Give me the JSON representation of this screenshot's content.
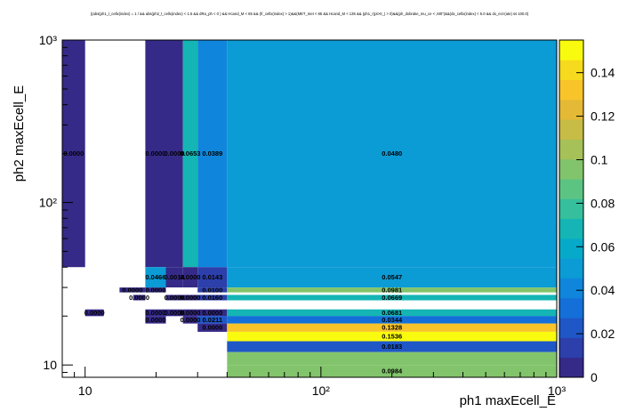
{
  "chart_data": {
    "type": "heatmap",
    "title": "((abs(ph1_l_cellx(index) = 1 / && abs(ph2_l_cellx(index) < 1.5 && dRa_ph < 0 ) && Hcand_M < 65 && (fr_cellx(index) > 1)&&(MET_met < 85 && Hcand_M < 135 && (ph1_r(pt>0_) > 0)&&(ph_dxbrake_mu_ce < ,M0\")&&(dx_cellx(index) < 5.0 && dx_ect-(ate) ss 100.0)",
    "xlabel": "ph1 maxEcell_E",
    "ylabel": "ph2 maxEcell_E",
    "x_scale": "log",
    "y_scale": "log",
    "xlim": [
      8.0,
      1000
    ],
    "ylim": [
      8.4,
      1000
    ],
    "x_ticks": [
      {
        "v": 10,
        "label": "10"
      },
      {
        "v": 100,
        "label": "10²"
      },
      {
        "v": 1000,
        "label": "10³"
      }
    ],
    "y_ticks": [
      {
        "v": 10,
        "label": "10"
      },
      {
        "v": 100,
        "label": "10²"
      },
      {
        "v": 1000,
        "label": "10³"
      }
    ],
    "z_range": [
      0,
      0.155
    ],
    "z_ticks": [
      {
        "v": 0,
        "label": "0"
      },
      {
        "v": 0.02,
        "label": "0.02"
      },
      {
        "v": 0.04,
        "label": "0.04"
      },
      {
        "v": 0.06,
        "label": "0.06"
      },
      {
        "v": 0.08,
        "label": "0.08"
      },
      {
        "v": 0.1,
        "label": "0.1"
      },
      {
        "v": 0.12,
        "label": "0.12"
      },
      {
        "v": 0.14,
        "label": "0.14"
      }
    ],
    "cells": [
      {
        "x0": 8.0,
        "x1": 10.0,
        "y0": 40,
        "y1": 1000,
        "z": 0.0,
        "label": "0.0000"
      },
      {
        "x0": 18.0,
        "x1": 22.0,
        "y0": 40,
        "y1": 1000,
        "z": 0.0,
        "label": "0.0000"
      },
      {
        "x0": 22.0,
        "x1": 26.0,
        "y0": 40,
        "y1": 1000,
        "z": 0.0,
        "label": "0.0000"
      },
      {
        "x0": 26.0,
        "x1": 30.0,
        "y0": 40,
        "y1": 1000,
        "z": 0.0653,
        "label": "0.0653"
      },
      {
        "x0": 30.0,
        "x1": 40.0,
        "y0": 40,
        "y1": 1000,
        "z": 0.0389,
        "label": "0.0389"
      },
      {
        "x0": 40.0,
        "x1": 1000,
        "y0": 40,
        "y1": 1000,
        "z": 0.048,
        "label": "0.0480"
      },
      {
        "x0": 18.0,
        "x1": 22.0,
        "y0": 30,
        "y1": 40,
        "z": 0.0466,
        "label": "0.0466"
      },
      {
        "x0": 22.0,
        "x1": 26.0,
        "y0": 30,
        "y1": 40,
        "z": 0.0014,
        "label": "0.0014"
      },
      {
        "x0": 26.0,
        "x1": 30.0,
        "y0": 30,
        "y1": 40,
        "z": 0.0,
        "label": "0.0000"
      },
      {
        "x0": 30.0,
        "x1": 40.0,
        "y0": 30,
        "y1": 40,
        "z": 0.0143,
        "label": "0.0143"
      },
      {
        "x0": 40.0,
        "x1": 1000,
        "y0": 30,
        "y1": 40,
        "z": 0.0547,
        "label": "0.0547"
      },
      {
        "x0": 14.0,
        "x1": 18.0,
        "y0": 28,
        "y1": 30,
        "z": 0.0,
        "label": "0.0000"
      },
      {
        "x0": 18.0,
        "x1": 22.0,
        "y0": 28,
        "y1": 30,
        "z": 0.0,
        "label": "0.0000"
      },
      {
        "x0": 30.0,
        "x1": 40.0,
        "y0": 28,
        "y1": 30,
        "z": 0.01,
        "label": "0.0100"
      },
      {
        "x0": 40.0,
        "x1": 1000,
        "y0": 28,
        "y1": 30,
        "z": 0.0981,
        "label": "0.0981"
      },
      {
        "x0": 16.0,
        "x1": 18.0,
        "y0": 25,
        "y1": 27,
        "z": 0.0,
        "label": "0.0000"
      },
      {
        "x0": 22.0,
        "x1": 26.0,
        "y0": 25,
        "y1": 27,
        "z": 0.0,
        "label": "0.0000"
      },
      {
        "x0": 26.0,
        "x1": 30.0,
        "y0": 25,
        "y1": 27,
        "z": 0.0,
        "label": "0.0000"
      },
      {
        "x0": 30.0,
        "x1": 40.0,
        "y0": 25,
        "y1": 27,
        "z": 0.016,
        "label": "0.0160"
      },
      {
        "x0": 40.0,
        "x1": 1000,
        "y0": 25,
        "y1": 27,
        "z": 0.0669,
        "label": "0.0669"
      },
      {
        "x0": 10.0,
        "x1": 12.0,
        "y0": 20,
        "y1": 22,
        "z": 0.0,
        "label": "0.0000"
      },
      {
        "x0": 18.0,
        "x1": 22.0,
        "y0": 20,
        "y1": 22,
        "z": 0.0,
        "label": "0.0000"
      },
      {
        "x0": 22.0,
        "x1": 26.0,
        "y0": 20,
        "y1": 22,
        "z": 0.0,
        "label": "0.0000"
      },
      {
        "x0": 26.0,
        "x1": 30.0,
        "y0": 20,
        "y1": 22,
        "z": 0.0,
        "label": "0.0000"
      },
      {
        "x0": 30.0,
        "x1": 40.0,
        "y0": 20,
        "y1": 22,
        "z": 0.0,
        "label": "0.0000"
      },
      {
        "x0": 40.0,
        "x1": 1000,
        "y0": 20,
        "y1": 22,
        "z": 0.0681,
        "label": "0.0681"
      },
      {
        "x0": 18.0,
        "x1": 22.0,
        "y0": 18,
        "y1": 20,
        "z": 0.0,
        "label": "0.0000"
      },
      {
        "x0": 26.0,
        "x1": 30.0,
        "y0": 18,
        "y1": 20,
        "z": 0.0,
        "label": "0.0000"
      },
      {
        "x0": 30.0,
        "x1": 40.0,
        "y0": 18,
        "y1": 20,
        "z": 0.0211,
        "label": "0.0211"
      },
      {
        "x0": 40.0,
        "x1": 1000,
        "y0": 18,
        "y1": 20,
        "z": 0.0344,
        "label": "0.0344"
      },
      {
        "x0": 30.0,
        "x1": 40.0,
        "y0": 16,
        "y1": 18,
        "z": 0.0,
        "label": "0.0000"
      },
      {
        "x0": 40.0,
        "x1": 1000,
        "y0": 16,
        "y1": 18,
        "z": 0.1328,
        "label": "0.1328"
      },
      {
        "x0": 40.0,
        "x1": 1000,
        "y0": 14,
        "y1": 16,
        "z": 0.1536,
        "label": "0.1536"
      },
      {
        "x0": 40.0,
        "x1": 1000,
        "y0": 12,
        "y1": 14,
        "z": 0.0183,
        "label": "0.0183"
      },
      {
        "x0": 40.0,
        "x1": 1000,
        "y0": 8.4,
        "y1": 10,
        "z": 0.0984,
        "label": "0.0984"
      },
      {
        "x0": 40.0,
        "x1": 1000,
        "y0": 10,
        "y1": 12,
        "z": 0.0984,
        "label": ""
      }
    ]
  },
  "palette": [
    "#352a87",
    "#2c3fab",
    "#1f57c7",
    "#1470d8",
    "#0f86db",
    "#0b9bd5",
    "#06aac8",
    "#14b5b4",
    "#36bf9c",
    "#5cc483",
    "#82c46b",
    "#a6c157",
    "#c7bc45",
    "#e4b935",
    "#f8c42a",
    "#f6da1d",
    "#f9fb0e"
  ]
}
